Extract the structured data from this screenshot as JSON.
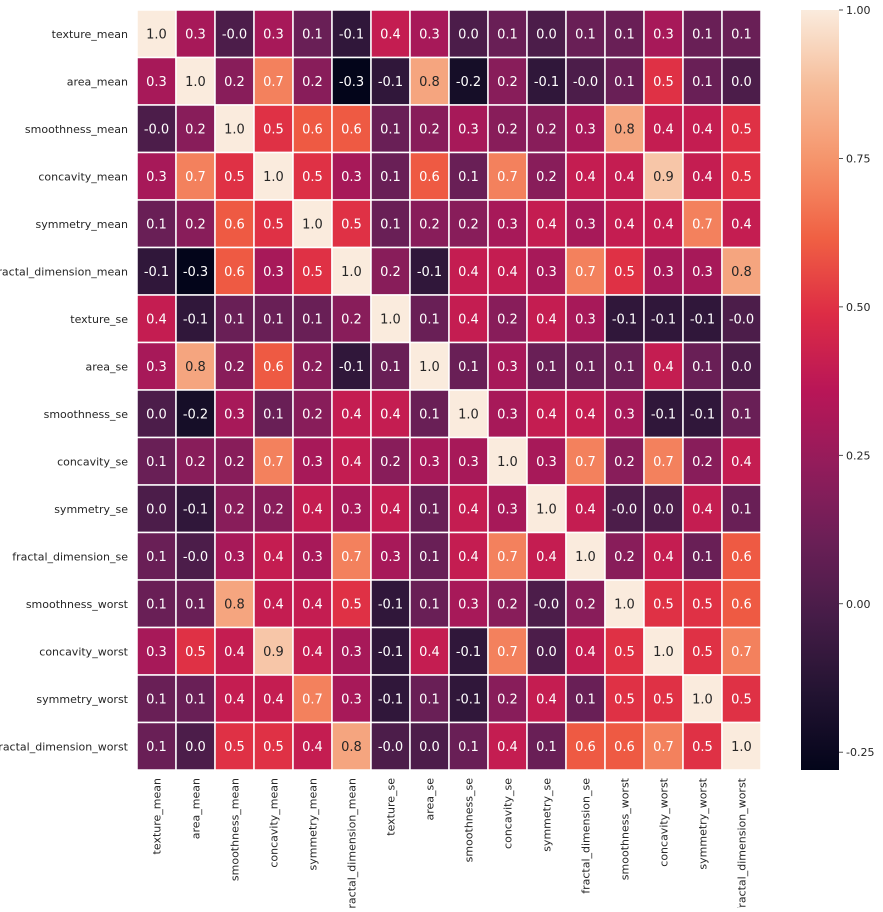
{
  "chart_data": {
    "type": "heatmap",
    "title": "",
    "xlabel": "",
    "ylabel": "",
    "labels": [
      "texture_mean",
      "area_mean",
      "smoothness_mean",
      "concavity_mean",
      "symmetry_mean",
      "fractal_dimension_mean",
      "texture_se",
      "area_se",
      "smoothness_se",
      "concavity_se",
      "symmetry_se",
      "fractal_dimension_se",
      "smoothness_worst",
      "concavity_worst",
      "symmetry_worst",
      "fractal_dimension_worst"
    ],
    "values": [
      [
        1.0,
        0.3,
        -0.0,
        0.3,
        0.1,
        -0.1,
        0.4,
        0.3,
        0.0,
        0.1,
        0.0,
        0.1,
        0.1,
        0.3,
        0.1,
        0.1
      ],
      [
        0.3,
        1.0,
        0.2,
        0.7,
        0.2,
        -0.3,
        -0.1,
        0.8,
        -0.2,
        0.2,
        -0.1,
        -0.0,
        0.1,
        0.5,
        0.1,
        0.0
      ],
      [
        -0.0,
        0.2,
        1.0,
        0.5,
        0.6,
        0.6,
        0.1,
        0.2,
        0.3,
        0.2,
        0.2,
        0.3,
        0.8,
        0.4,
        0.4,
        0.5
      ],
      [
        0.3,
        0.7,
        0.5,
        1.0,
        0.5,
        0.3,
        0.1,
        0.6,
        0.1,
        0.7,
        0.2,
        0.4,
        0.4,
        0.9,
        0.4,
        0.5
      ],
      [
        0.1,
        0.2,
        0.6,
        0.5,
        1.0,
        0.5,
        0.1,
        0.2,
        0.2,
        0.3,
        0.4,
        0.3,
        0.4,
        0.4,
        0.7,
        0.4
      ],
      [
        -0.1,
        -0.3,
        0.6,
        0.3,
        0.5,
        1.0,
        0.2,
        -0.1,
        0.4,
        0.4,
        0.3,
        0.7,
        0.5,
        0.3,
        0.3,
        0.8
      ],
      [
        0.4,
        -0.1,
        0.1,
        0.1,
        0.1,
        0.2,
        1.0,
        0.1,
        0.4,
        0.2,
        0.4,
        0.3,
        -0.1,
        -0.1,
        -0.1,
        -0.0
      ],
      [
        0.3,
        0.8,
        0.2,
        0.6,
        0.2,
        -0.1,
        0.1,
        1.0,
        0.1,
        0.3,
        0.1,
        0.1,
        0.1,
        0.4,
        0.1,
        0.0
      ],
      [
        0.0,
        -0.2,
        0.3,
        0.1,
        0.2,
        0.4,
        0.4,
        0.1,
        1.0,
        0.3,
        0.4,
        0.4,
        0.3,
        -0.1,
        -0.1,
        0.1
      ],
      [
        0.1,
        0.2,
        0.2,
        0.7,
        0.3,
        0.4,
        0.2,
        0.3,
        0.3,
        1.0,
        0.3,
        0.7,
        0.2,
        0.7,
        0.2,
        0.4
      ],
      [
        0.0,
        -0.1,
        0.2,
        0.2,
        0.4,
        0.3,
        0.4,
        0.1,
        0.4,
        0.3,
        1.0,
        0.4,
        -0.0,
        0.0,
        0.4,
        0.1
      ],
      [
        0.1,
        -0.0,
        0.3,
        0.4,
        0.3,
        0.7,
        0.3,
        0.1,
        0.4,
        0.7,
        0.4,
        1.0,
        0.2,
        0.4,
        0.1,
        0.6
      ],
      [
        0.1,
        0.1,
        0.8,
        0.4,
        0.4,
        0.5,
        -0.1,
        0.1,
        0.3,
        0.2,
        -0.0,
        0.2,
        1.0,
        0.5,
        0.5,
        0.6
      ],
      [
        0.3,
        0.5,
        0.4,
        0.9,
        0.4,
        0.3,
        -0.1,
        0.4,
        -0.1,
        0.7,
        0.0,
        0.4,
        0.5,
        1.0,
        0.5,
        0.7
      ],
      [
        0.1,
        0.1,
        0.4,
        0.4,
        0.7,
        0.3,
        -0.1,
        0.1,
        -0.1,
        0.2,
        0.4,
        0.1,
        0.5,
        0.5,
        1.0,
        0.5
      ],
      [
        0.1,
        0.0,
        0.5,
        0.5,
        0.4,
        0.8,
        -0.0,
        0.0,
        0.1,
        0.4,
        0.1,
        0.6,
        0.6,
        0.7,
        0.5,
        1.0
      ]
    ],
    "annotations": true,
    "annotation_format": "0.1f",
    "colormap": "rocket",
    "colorbar": {
      "range": [
        -0.28,
        1.0
      ],
      "ticks": [
        "1.00",
        "0.75",
        "0.50",
        "0.25",
        "0.00",
        "-0.25"
      ],
      "placement": "right"
    },
    "grid_lines_color": "#ffffff"
  }
}
